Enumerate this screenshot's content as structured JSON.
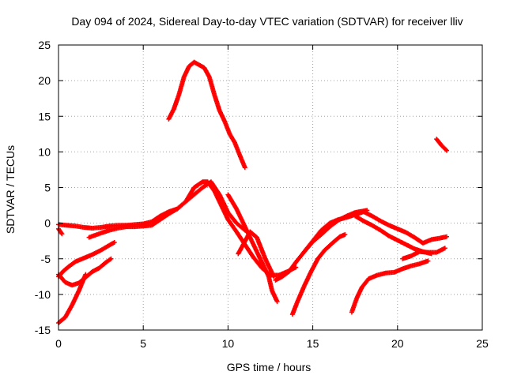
{
  "chart_data": {
    "type": "scatter",
    "title": "Day 094 of 2024, Sidereal Day-to-day VTEC variation (SDTVAR) for receiver lliv",
    "xlabel": "GPS time / hours",
    "ylabel": "SDTVAR / TECUs",
    "xlim": [
      0,
      25
    ],
    "ylim": [
      -15,
      25
    ],
    "xticks": [
      "0",
      "5",
      "10",
      "15",
      "20",
      "25"
    ],
    "yticks": [
      "-15",
      "-10",
      "-5",
      "0",
      "5",
      "10",
      "15",
      "20",
      "25"
    ],
    "grid": true,
    "marker": "plus",
    "color": "#ff0000",
    "series": [
      {
        "x": [
          0,
          0.2
        ],
        "y": [
          -0.8,
          -1.5
        ]
      },
      {
        "x": [
          0,
          0.5,
          1,
          1.5,
          2,
          2.5,
          3,
          3.5,
          4,
          4.5,
          5,
          5.5,
          6,
          6.5,
          7,
          7.5,
          8,
          8.5,
          9,
          9.5,
          10,
          10.5,
          11
        ],
        "y": [
          -0.2,
          -0.3,
          -0.4,
          -0.6,
          -0.7,
          -0.6,
          -0.4,
          -0.3,
          -0.3,
          -0.2,
          -0.1,
          0.2,
          1.0,
          1.6,
          2.0,
          3.0,
          4.0,
          5.0,
          5.8,
          4.0,
          1.5,
          0.0,
          -1.0
        ]
      },
      {
        "x": [
          1.8,
          2.5,
          3,
          3.5,
          4,
          4.5,
          5,
          5.5,
          6,
          6.5,
          7,
          7.5,
          8,
          8.5,
          8.8,
          9.2,
          9.6,
          10,
          10.5,
          11,
          11.5,
          12,
          12.5,
          13,
          13.5,
          14
        ],
        "y": [
          -2.0,
          -1.4,
          -1.0,
          -0.7,
          -0.5,
          -0.5,
          -0.4,
          -0.3,
          0.5,
          1.3,
          2.0,
          3.0,
          5.0,
          5.8,
          5.8,
          4.5,
          2.5,
          0.5,
          -1.2,
          -3.0,
          -4.8,
          -6.3,
          -7.3,
          -7.3,
          -6.8,
          -6.2
        ]
      },
      {
        "x": [
          10,
          10.5,
          11,
          11.5,
          12,
          12.4,
          12.6,
          12.9
        ],
        "y": [
          4.0,
          2.0,
          -0.5,
          -3.0,
          -5.5,
          -7.5,
          -9.5,
          -11.0
        ]
      },
      {
        "x": [
          0,
          0.3,
          0.6,
          1,
          1.5,
          2,
          2.5,
          3,
          3.3
        ],
        "y": [
          -7.5,
          -6.7,
          -6.1,
          -5.4,
          -4.9,
          -4.4,
          -3.8,
          -3.1,
          -2.7
        ]
      },
      {
        "x": [
          0,
          0.4,
          0.8,
          1.2,
          1.6,
          2,
          2.4,
          2.8,
          3.1
        ],
        "y": [
          -7.2,
          -8.3,
          -8.7,
          -8.4,
          -7.6,
          -6.8,
          -6.3,
          -5.5,
          -5.0
        ]
      },
      {
        "x": [
          0,
          0.4,
          0.8,
          1.2,
          1.6
        ],
        "y": [
          -14.0,
          -13.2,
          -11.5,
          -9.5,
          -7.2
        ]
      },
      {
        "x": [
          6.5,
          6.8,
          7.1,
          7.4,
          7.7,
          8,
          8.3,
          8.6,
          8.9,
          9.2,
          9.5,
          9.8,
          10.1,
          10.4,
          10.7,
          11
        ],
        "y": [
          14.6,
          16.0,
          18.0,
          20.5,
          22.0,
          22.6,
          22.2,
          21.8,
          20.5,
          18.0,
          15.8,
          14.3,
          12.5,
          11.3,
          9.5,
          7.8
        ]
      },
      {
        "x": [
          10.6,
          10.9,
          11.3,
          11.7,
          12.2,
          12.7
        ],
        "y": [
          -4.3,
          -3.0,
          -1.2,
          -2.0,
          -5.0,
          -7.5
        ]
      },
      {
        "x": [
          12.8,
          13.2,
          13.6,
          14,
          14.5,
          15,
          15.5,
          16,
          16.5,
          17,
          17.5,
          18,
          18.5,
          19,
          19.5,
          20,
          20.5,
          21,
          21.5,
          22,
          22.5,
          22.9
        ],
        "y": [
          -8.0,
          -7.5,
          -6.8,
          -5.5,
          -4.0,
          -2.5,
          -1.0,
          0.0,
          0.5,
          0.8,
          1.2,
          1.6,
          1.0,
          0.3,
          -0.3,
          -0.8,
          -1.3,
          -2.0,
          -2.8,
          -2.3,
          -2.1,
          -1.9
        ]
      },
      {
        "x": [
          13.8,
          14.1,
          14.5,
          14.9,
          15.3,
          15.7,
          16.2,
          16.6,
          16.9
        ],
        "y": [
          -12.8,
          -11.0,
          -8.8,
          -6.8,
          -5.0,
          -3.8,
          -2.7,
          -1.9,
          -1.6
        ]
      },
      {
        "x": [
          14.5,
          15,
          15.5,
          16,
          16.5,
          17,
          17.5,
          18.2
        ],
        "y": [
          -4.0,
          -2.6,
          -1.6,
          -0.5,
          0.4,
          1.0,
          1.5,
          1.8
        ]
      },
      {
        "x": [
          17.5,
          18,
          18.5,
          19,
          19.5,
          20,
          20.5,
          21,
          21.5,
          22
        ],
        "y": [
          1.0,
          0.3,
          -0.3,
          -1.0,
          -1.8,
          -2.4,
          -3.0,
          -3.6,
          -4.0,
          -4.3
        ]
      },
      {
        "x": [
          17.3,
          17.6,
          17.9,
          18.3,
          18.8,
          19.3,
          19.8,
          20.3,
          20.8,
          21.3,
          21.8
        ],
        "y": [
          -12.5,
          -10.5,
          -9.0,
          -7.8,
          -7.3,
          -7.0,
          -6.9,
          -6.4,
          -6.0,
          -5.7,
          -5.3
        ]
      },
      {
        "x": [
          20.3,
          20.8,
          21.3,
          21.8,
          22.3,
          22.8
        ],
        "y": [
          -5.0,
          -4.6,
          -4.0,
          -4.1,
          -4.1,
          -3.5
        ]
      },
      {
        "x": [
          22.3,
          22.6,
          22.9
        ],
        "y": [
          11.8,
          10.9,
          10.2
        ]
      }
    ]
  }
}
